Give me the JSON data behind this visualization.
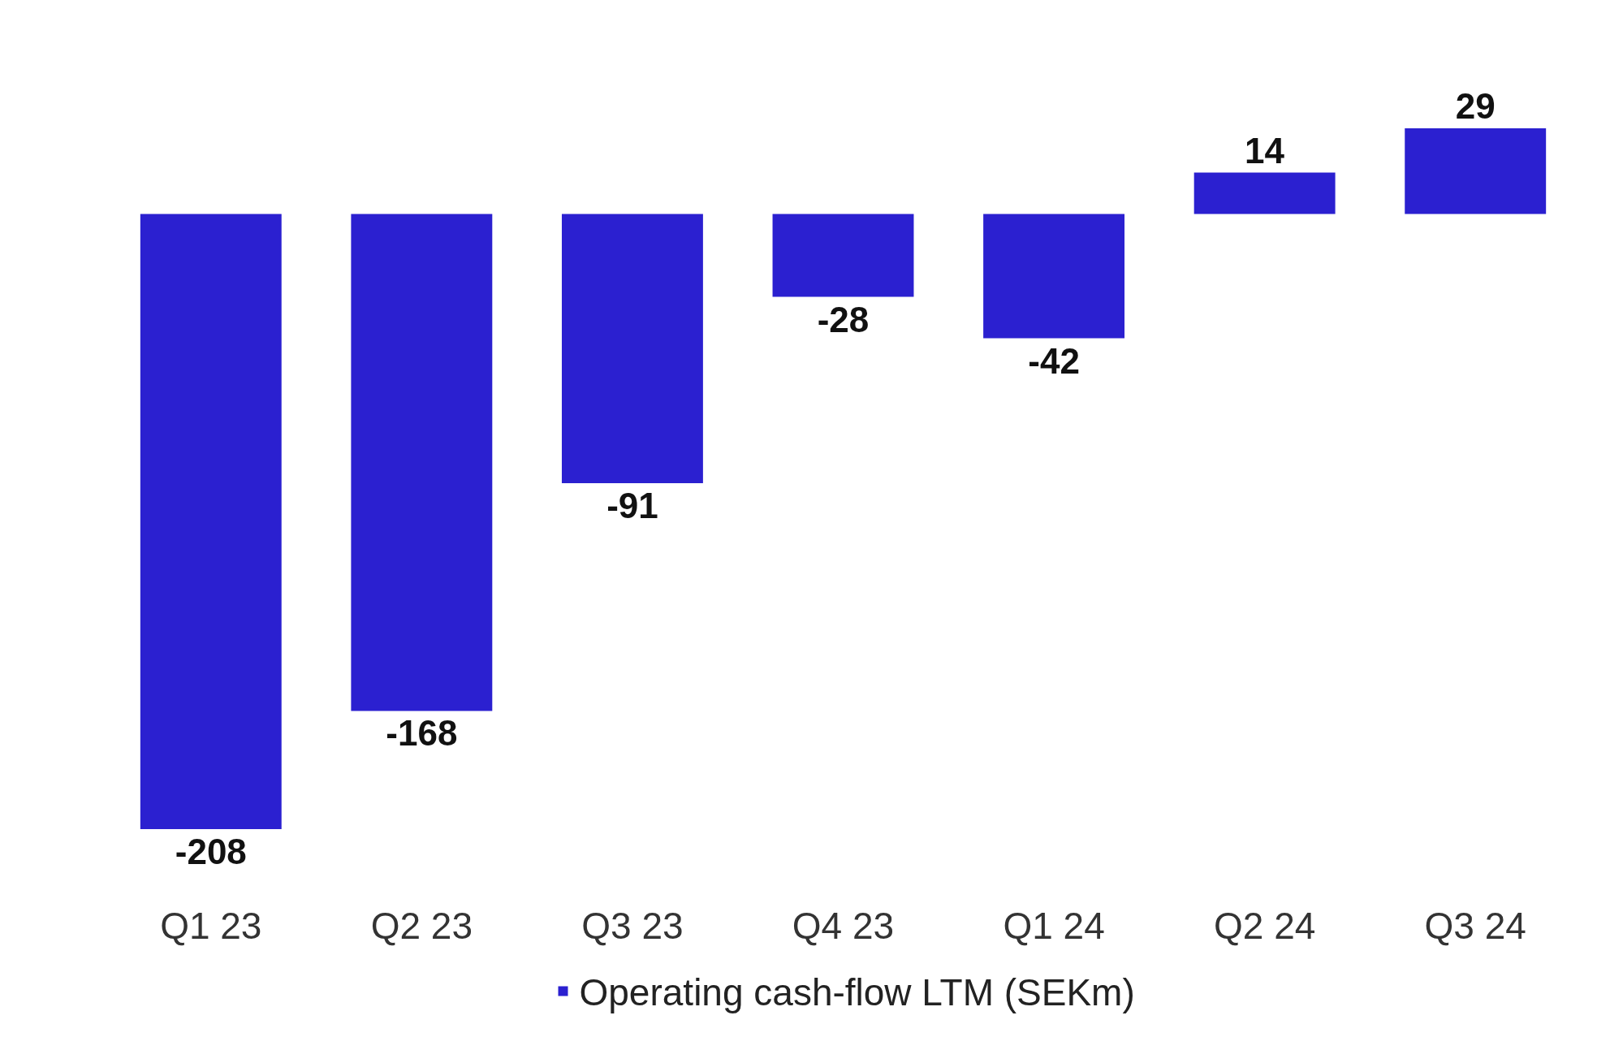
{
  "chart_data": {
    "type": "bar",
    "categories": [
      "Q1 23",
      "Q2 23",
      "Q3 23",
      "Q4 23",
      "Q1 24",
      "Q2 24",
      "Q3 24"
    ],
    "series": [
      {
        "name": "Operating cash-flow LTM (SEKm)",
        "color": "#2b20d0",
        "values": [
          -208,
          -168,
          -91,
          -28,
          -42,
          14,
          29
        ]
      }
    ],
    "data_labels": true,
    "grid": false,
    "legend": "bottom"
  }
}
